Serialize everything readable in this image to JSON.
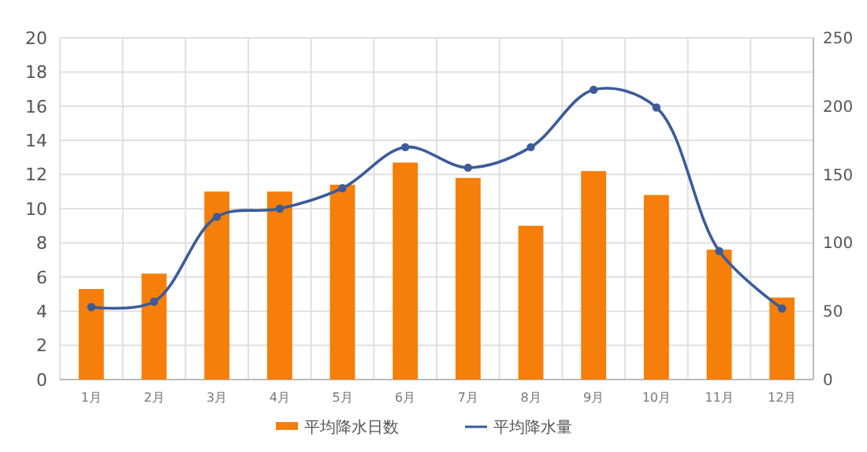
{
  "chart_data": {
    "type": "bar",
    "categories": [
      "1月",
      "2月",
      "3月",
      "4月",
      "5月",
      "6月",
      "7月",
      "8月",
      "9月",
      "10月",
      "11月",
      "12月"
    ],
    "series": [
      {
        "name": "平均降水日数",
        "color": "#f57f0a",
        "values": [
          5.3,
          6.2,
          11.0,
          11.0,
          11.4,
          12.7,
          11.8,
          9.0,
          12.2,
          10.8,
          7.6,
          4.8
        ]
      },
      {
        "name": "平均降水量",
        "type": "line",
        "axis": "y2",
        "color": "#3b5b9a",
        "values": [
          53,
          57,
          119,
          125,
          140,
          170,
          155,
          170,
          212,
          199,
          94,
          52
        ]
      }
    ],
    "ylim": [
      0,
      20
    ],
    "yticks": [
      0,
      2,
      4,
      6,
      8,
      10,
      12,
      14,
      16,
      18,
      20
    ],
    "y2lim": [
      0,
      250
    ],
    "y2ticks": [
      0,
      50,
      100,
      150,
      200,
      250
    ],
    "grid": true,
    "legend": "bottom",
    "marker": "circle",
    "line_style": "solid"
  }
}
